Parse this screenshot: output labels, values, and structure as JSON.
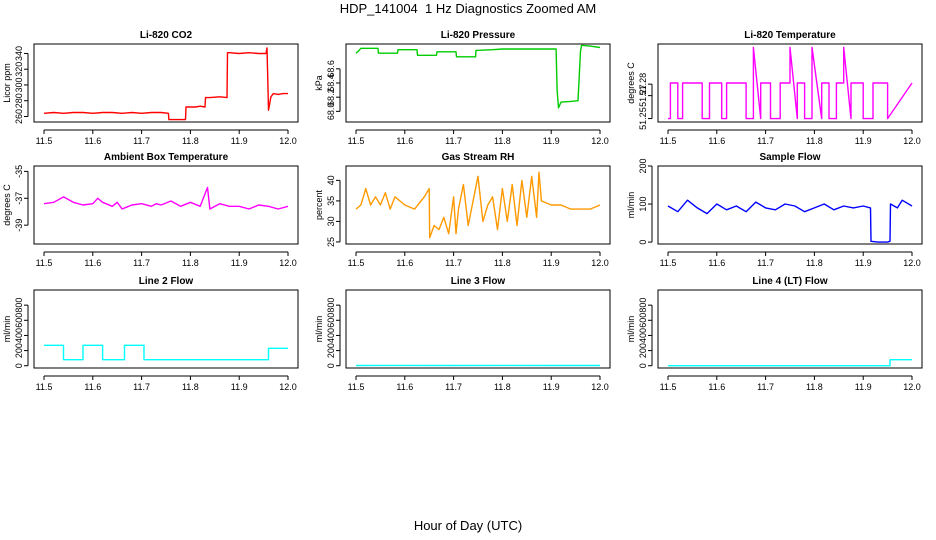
{
  "figure": {
    "title": "HDP_141004  1 Hz Diagnostics Zoomed AM",
    "xcaption": "Hour of Day (UTC)"
  },
  "chart_data": [
    {
      "type": "line",
      "title": "Li-820 CO2",
      "ylabel": "Licor ppm",
      "color": "#ff0000",
      "xlim": [
        11.5,
        12.0
      ],
      "ylim": [
        253,
        352
      ],
      "xticks": [
        "11.5",
        "11.6",
        "11.7",
        "11.8",
        "11.9",
        "12.0"
      ],
      "yticks": [
        {
          "v": 260,
          "label": "260"
        },
        {
          "v": 280,
          "label": "280"
        },
        {
          "v": 300,
          "label": "300"
        },
        {
          "v": 320,
          "label": "320"
        },
        {
          "v": 340,
          "label": "340"
        }
      ],
      "x": [
        11.5,
        11.52,
        11.54,
        11.56,
        11.58,
        11.6,
        11.62,
        11.64,
        11.66,
        11.68,
        11.7,
        11.72,
        11.74,
        11.755,
        11.756,
        11.765,
        11.78,
        11.79,
        11.791,
        11.8,
        11.81,
        11.82,
        11.83,
        11.831,
        11.84,
        11.86,
        11.875,
        11.876,
        11.88,
        11.9,
        11.92,
        11.94,
        11.955,
        11.957,
        11.959,
        11.96,
        11.965,
        11.97,
        11.98,
        11.99,
        12.0
      ],
      "y": [
        264,
        265,
        264,
        265,
        265,
        264,
        265,
        265,
        264,
        265,
        264,
        265,
        265,
        264,
        256,
        256,
        256,
        256,
        272,
        272,
        272,
        273,
        272,
        284,
        284,
        285,
        284,
        341,
        341,
        340,
        341,
        340,
        340,
        347,
        295,
        268,
        285,
        289,
        288,
        289,
        289
      ]
    },
    {
      "type": "line",
      "title": "Li-820 Pressure",
      "ylabel": "kPa",
      "color": "#00cc00",
      "xlim": [
        11.5,
        12.0
      ],
      "ylim": [
        67.85,
        68.95
      ],
      "xticks": [
        "11.5",
        "11.6",
        "11.7",
        "11.8",
        "11.9",
        "12.0"
      ],
      "yticks": [
        {
          "v": 68.0,
          "label": "68.0"
        },
        {
          "v": 68.2,
          "label": "68.2"
        },
        {
          "v": 68.4,
          "label": "68.4"
        },
        {
          "v": 68.6,
          "label": "68.6"
        }
      ],
      "x": [
        11.5,
        11.505,
        11.51,
        11.53,
        11.545,
        11.546,
        11.57,
        11.585,
        11.586,
        11.6,
        11.625,
        11.626,
        11.65,
        11.665,
        11.666,
        11.69,
        11.705,
        11.706,
        11.74,
        11.745,
        11.746,
        11.78,
        11.8,
        11.82,
        11.84,
        11.86,
        11.88,
        11.9,
        11.91,
        11.912,
        11.915,
        11.92,
        11.94,
        11.955,
        11.96,
        11.962,
        11.965,
        11.98,
        12.0
      ],
      "y": [
        68.82,
        68.85,
        68.89,
        68.89,
        68.89,
        68.82,
        68.82,
        68.82,
        68.87,
        68.87,
        68.87,
        68.79,
        68.79,
        68.79,
        68.84,
        68.84,
        68.84,
        68.77,
        68.77,
        68.77,
        68.86,
        68.87,
        68.88,
        68.88,
        68.88,
        68.88,
        68.88,
        68.88,
        68.88,
        68.3,
        68.05,
        68.13,
        68.14,
        68.15,
        68.85,
        68.93,
        68.93,
        68.92,
        68.9
      ]
    },
    {
      "type": "line",
      "title": "Li-820 Temperature",
      "ylabel": "degrees C",
      "color": "#ff00ff",
      "xlim": [
        11.5,
        12.0
      ],
      "ylim": [
        51.247,
        51.315
      ],
      "xticks": [
        "11.5",
        "11.6",
        "11.7",
        "11.8",
        "11.9",
        "12.0"
      ],
      "yticks": [
        {
          "v": 51.25,
          "label": "51.25"
        },
        {
          "v": 51.27,
          "label": "51.27"
        },
        {
          "v": 51.28,
          "label": "51.28"
        }
      ],
      "x": [
        11.5,
        11.505,
        11.505,
        11.52,
        11.52,
        11.53,
        11.53,
        11.57,
        11.57,
        11.585,
        11.585,
        11.61,
        11.61,
        11.62,
        11.62,
        11.66,
        11.66,
        11.675,
        11.675,
        11.69,
        11.69,
        11.71,
        11.71,
        11.73,
        11.73,
        11.75,
        11.75,
        11.765,
        11.765,
        11.78,
        11.78,
        11.795,
        11.795,
        11.815,
        11.815,
        11.83,
        11.83,
        11.845,
        11.845,
        11.86,
        11.86,
        11.875,
        11.875,
        11.9,
        11.9,
        11.92,
        11.92,
        11.95,
        11.95,
        12.0
      ],
      "y": [
        51.25,
        51.25,
        51.281,
        51.281,
        51.25,
        51.25,
        51.281,
        51.281,
        51.25,
        51.25,
        51.281,
        51.281,
        51.25,
        51.25,
        51.281,
        51.281,
        51.25,
        51.25,
        51.312,
        51.25,
        51.281,
        51.281,
        51.25,
        51.25,
        51.281,
        51.281,
        51.312,
        51.25,
        51.281,
        51.281,
        51.25,
        51.25,
        51.312,
        51.25,
        51.281,
        51.281,
        51.25,
        51.25,
        51.281,
        51.281,
        51.312,
        51.25,
        51.281,
        51.281,
        51.25,
        51.25,
        51.281,
        51.281,
        51.25,
        51.281
      ]
    },
    {
      "type": "line",
      "title": "Ambient Box Temperature",
      "ylabel": "degrees C",
      "color": "#ff00ff",
      "xlim": [
        11.5,
        12.0
      ],
      "ylim": [
        -40.4,
        -34.6
      ],
      "xticks": [
        "11.5",
        "11.6",
        "11.7",
        "11.8",
        "11.9",
        "12.0"
      ],
      "yticks": [
        {
          "v": -39,
          "label": "-39"
        },
        {
          "v": -37,
          "label": "-37"
        },
        {
          "v": -35,
          "label": "-35"
        }
      ],
      "x": [
        11.5,
        11.52,
        11.54,
        11.56,
        11.58,
        11.6,
        11.61,
        11.62,
        11.64,
        11.65,
        11.66,
        11.68,
        11.7,
        11.72,
        11.73,
        11.74,
        11.76,
        11.78,
        11.8,
        11.82,
        11.835,
        11.84,
        11.86,
        11.88,
        11.9,
        11.92,
        11.94,
        11.96,
        11.98,
        12.0
      ],
      "y": [
        -37.4,
        -37.3,
        -36.9,
        -37.3,
        -37.5,
        -37.4,
        -37.0,
        -37.3,
        -37.6,
        -37.3,
        -37.8,
        -37.5,
        -37.4,
        -37.6,
        -37.4,
        -37.5,
        -37.2,
        -37.6,
        -37.3,
        -37.6,
        -36.2,
        -37.8,
        -37.4,
        -37.6,
        -37.6,
        -37.8,
        -37.5,
        -37.6,
        -37.8,
        -37.6
      ]
    },
    {
      "type": "line",
      "title": "Gas Stream RH",
      "ylabel": "percent",
      "color": "#ff9900",
      "xlim": [
        11.5,
        12.0
      ],
      "ylim": [
        24.5,
        43.5
      ],
      "xticks": [
        "11.5",
        "11.6",
        "11.7",
        "11.8",
        "11.9",
        "12.0"
      ],
      "yticks": [
        {
          "v": 25,
          "label": "25"
        },
        {
          "v": 30,
          "label": "30"
        },
        {
          "v": 35,
          "label": "35"
        },
        {
          "v": 40,
          "label": "40"
        }
      ],
      "x": [
        11.5,
        11.51,
        11.52,
        11.53,
        11.54,
        11.55,
        11.56,
        11.57,
        11.58,
        11.6,
        11.62,
        11.64,
        11.65,
        11.651,
        11.66,
        11.67,
        11.68,
        11.69,
        11.7,
        11.705,
        11.71,
        11.72,
        11.73,
        11.74,
        11.75,
        11.76,
        11.77,
        11.78,
        11.79,
        11.8,
        11.81,
        11.82,
        11.83,
        11.84,
        11.85,
        11.86,
        11.87,
        11.875,
        11.88,
        11.9,
        11.92,
        11.94,
        11.96,
        11.98,
        12.0
      ],
      "y": [
        33,
        34,
        38,
        34,
        36,
        34,
        37,
        33,
        36,
        34,
        33,
        36,
        38,
        26,
        29,
        28,
        31,
        27,
        36,
        27,
        33,
        39,
        29,
        35,
        41,
        30,
        34,
        36,
        28,
        38,
        30,
        39,
        29,
        40,
        31,
        41,
        31,
        42,
        35,
        34,
        34,
        33,
        33,
        33,
        34
      ]
    },
    {
      "type": "line",
      "title": "Sample Flow",
      "ylabel": "ml/min",
      "color": "#0000ff",
      "xlim": [
        11.5,
        12.0
      ],
      "ylim": [
        -5,
        200
      ],
      "xticks": [
        "11.5",
        "11.6",
        "11.7",
        "11.8",
        "11.9",
        "12.0"
      ],
      "yticks": [
        {
          "v": 0,
          "label": "0"
        },
        {
          "v": 100,
          "label": "100"
        },
        {
          "v": 200,
          "label": "200"
        }
      ],
      "x": [
        11.5,
        11.52,
        11.54,
        11.56,
        11.58,
        11.6,
        11.62,
        11.64,
        11.66,
        11.68,
        11.7,
        11.72,
        11.74,
        11.76,
        11.78,
        11.8,
        11.82,
        11.84,
        11.86,
        11.88,
        11.9,
        11.915,
        11.916,
        11.93,
        11.95,
        11.955,
        11.956,
        11.97,
        11.98,
        12.0
      ],
      "y": [
        95,
        80,
        110,
        90,
        75,
        100,
        85,
        95,
        80,
        105,
        90,
        85,
        100,
        95,
        80,
        90,
        100,
        85,
        95,
        90,
        95,
        90,
        2,
        0,
        0,
        2,
        100,
        90,
        110,
        95
      ]
    },
    {
      "type": "line",
      "title": "Line 2 Flow",
      "ylabel": "ml/min",
      "color": "#00ffff",
      "xlim": [
        11.5,
        12.0
      ],
      "ylim": [
        -30,
        1000
      ],
      "xticks": [
        "11.5",
        "11.6",
        "11.7",
        "11.8",
        "11.9",
        "12.0"
      ],
      "yticks": [
        {
          "v": 0,
          "label": "0"
        },
        {
          "v": 200,
          "label": "200"
        },
        {
          "v": 400,
          "label": "400"
        },
        {
          "v": 600,
          "label": "600"
        },
        {
          "v": 800,
          "label": "800"
        }
      ],
      "x": [
        11.5,
        11.54,
        11.54,
        11.58,
        11.58,
        11.62,
        11.62,
        11.665,
        11.665,
        11.705,
        11.705,
        11.96,
        11.96,
        12.0
      ],
      "y": [
        270,
        270,
        80,
        80,
        270,
        270,
        80,
        80,
        270,
        270,
        80,
        80,
        230,
        230
      ]
    },
    {
      "type": "line",
      "title": "Line 3 Flow",
      "ylabel": "ml/min",
      "color": "#00ffff",
      "xlim": [
        11.5,
        12.0
      ],
      "ylim": [
        -30,
        1000
      ],
      "xticks": [
        "11.5",
        "11.6",
        "11.7",
        "11.8",
        "11.9",
        "12.0"
      ],
      "yticks": [
        {
          "v": 0,
          "label": "0"
        },
        {
          "v": 200,
          "label": "200"
        },
        {
          "v": 400,
          "label": "400"
        },
        {
          "v": 600,
          "label": "600"
        },
        {
          "v": 800,
          "label": "800"
        }
      ],
      "x": [
        11.5,
        11.6,
        11.7,
        11.8,
        11.9,
        12.0
      ],
      "y": [
        3,
        4,
        3,
        4,
        3,
        3
      ]
    },
    {
      "type": "line",
      "title": "Line 4 (LT) Flow",
      "ylabel": "ml/min",
      "color": "#00ffff",
      "xlim": [
        11.5,
        12.0
      ],
      "ylim": [
        -30,
        1000
      ],
      "xticks": [
        "11.5",
        "11.6",
        "11.7",
        "11.8",
        "11.9",
        "12.0"
      ],
      "yticks": [
        {
          "v": 0,
          "label": "0"
        },
        {
          "v": 200,
          "label": "200"
        },
        {
          "v": 400,
          "label": "400"
        },
        {
          "v": 600,
          "label": "600"
        },
        {
          "v": 800,
          "label": "800"
        }
      ],
      "x": [
        11.5,
        11.955,
        11.955,
        12.0
      ],
      "y": [
        0,
        0,
        80,
        80
      ]
    }
  ]
}
